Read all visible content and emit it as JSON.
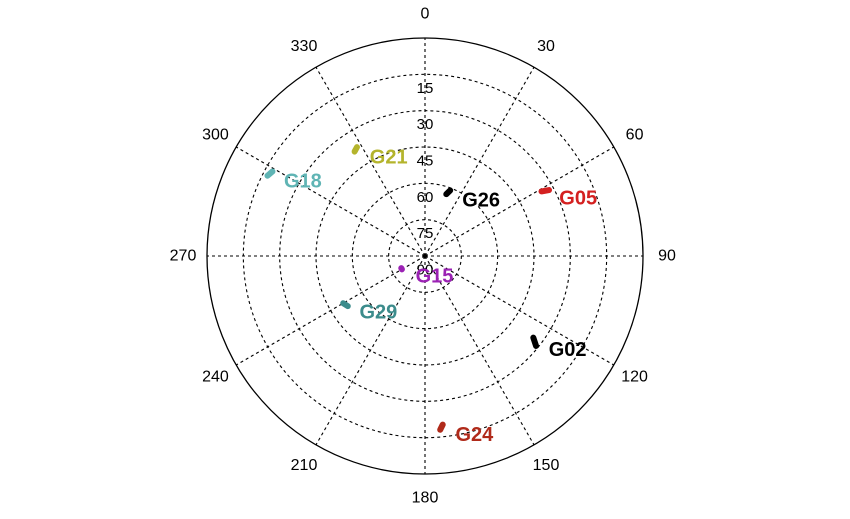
{
  "chart_data": {
    "type": "scatter",
    "subtype": "polar skyplot",
    "title": "",
    "azimuth_ticks": [
      "0",
      "30",
      "60",
      "90",
      "120",
      "150",
      "180",
      "210",
      "240",
      "270",
      "300",
      "330"
    ],
    "elevation_ticks": [
      "15",
      "30",
      "45",
      "60",
      "75",
      "90"
    ],
    "radial_axis": {
      "quantity": "elevation",
      "center": 90,
      "edge": 0,
      "ring_step": 15
    },
    "azimuth_axis": {
      "zero": "top",
      "direction": "clockwise",
      "step": 30
    },
    "grid": true,
    "series": [
      {
        "name": "G21",
        "color": "#b4b42c",
        "track": [
          [
            326,
            38
          ],
          [
            328,
            37
          ]
        ]
      },
      {
        "name": "G18",
        "color": "#5fb4b4",
        "track": [
          [
            297,
            17
          ],
          [
            299,
            18
          ]
        ]
      },
      {
        "name": "G26",
        "color": "#000000",
        "track": [
          [
            19,
            63
          ],
          [
            21,
            61
          ]
        ]
      },
      {
        "name": "G05",
        "color": "#d42020",
        "track": [
          [
            61,
            35
          ],
          [
            62,
            32
          ]
        ]
      },
      {
        "name": "G15",
        "color": "#9b22b4",
        "track": [
          [
            240,
            79
          ],
          [
            243,
            79
          ]
        ]
      },
      {
        "name": "G29",
        "color": "#3c8c8c",
        "track": [
          [
            237,
            52
          ],
          [
            240,
            51
          ]
        ]
      },
      {
        "name": "G02",
        "color": "#000000",
        "track": [
          [
            127,
            34
          ],
          [
            129,
            31
          ]
        ]
      },
      {
        "name": "G24",
        "color": "#b02a1a",
        "track": [
          [
            174,
            20
          ],
          [
            175,
            18
          ]
        ]
      }
    ]
  }
}
